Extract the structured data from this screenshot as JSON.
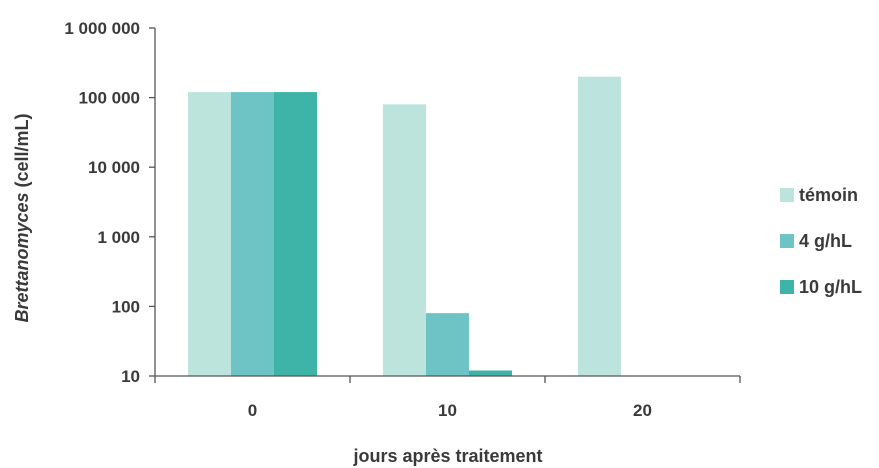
{
  "chart_data": {
    "type": "bar",
    "y_scale": "log",
    "ylim": [
      10,
      1000000
    ],
    "y_ticks": [
      {
        "value": 10,
        "label": "10"
      },
      {
        "value": 100,
        "label": "100"
      },
      {
        "value": 1000,
        "label": "1 000"
      },
      {
        "value": 10000,
        "label": "10 000"
      },
      {
        "value": 100000,
        "label": "100 000"
      },
      {
        "value": 1000000,
        "label": "1 000 000"
      }
    ],
    "categories": [
      "0",
      "10",
      "20"
    ],
    "series": [
      {
        "name": "témoin",
        "color": "#bde3dd",
        "values": [
          120000,
          80000,
          200000
        ]
      },
      {
        "name": "4 g/hL",
        "color": "#6ec4c4",
        "values": [
          120000,
          80,
          null
        ]
      },
      {
        "name": "10 g/hL",
        "color": "#3db4a7",
        "values": [
          120000,
          12,
          null
        ]
      }
    ],
    "xlabel": "jours après traitement",
    "ylabel_italic": "Brettanomyces",
    "ylabel_rest": " (cell/mL)",
    "grid": false,
    "legend_position": "right",
    "axis_color": "#555555"
  }
}
